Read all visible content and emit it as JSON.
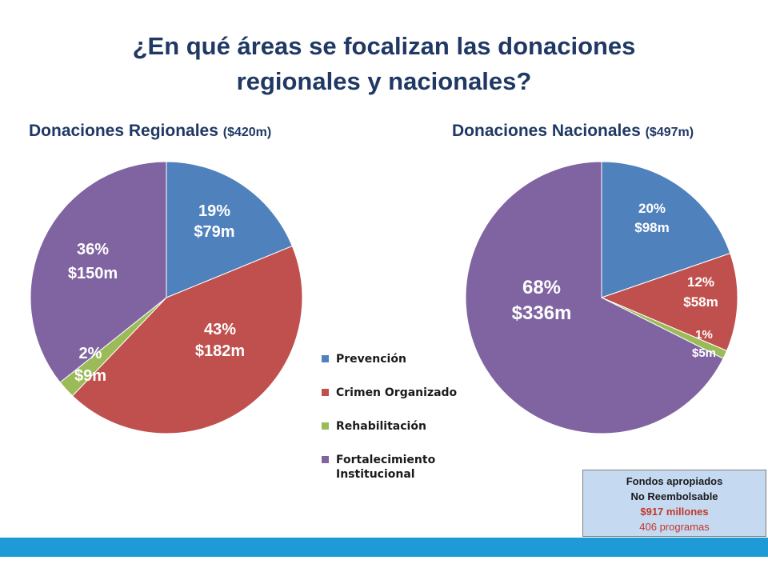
{
  "title_line1": "¿En qué áreas se focalizan las donaciones",
  "title_line2": "regionales y nacionales?",
  "colors": {
    "prevencion": "#4f81bd",
    "crimen": "#c0504d",
    "rehabilitacion": "#9bbb59",
    "fortalecimiento": "#8064a2"
  },
  "legend": [
    {
      "label": "Prevención",
      "color": "#4f81bd"
    },
    {
      "label": "Crimen Organizado",
      "color": "#c0504d"
    },
    {
      "label": "Rehabilitación",
      "color": "#9bbb59"
    },
    {
      "label_line1": "Fortalecimiento",
      "label_line2": "Institucional",
      "color": "#8064a2"
    }
  ],
  "chart_data": [
    {
      "type": "pie",
      "title": "Donaciones Regionales",
      "title_amount": "($420m)",
      "slices": [
        {
          "category": "Prevención",
          "value": 79,
          "pct_label": "19%",
          "amount_label": "$79m",
          "color": "#4f81bd"
        },
        {
          "category": "Crimen Organizado",
          "value": 182,
          "pct_label": "43%",
          "amount_label": "$182m",
          "color": "#c0504d"
        },
        {
          "category": "Rehabilitación",
          "value": 9,
          "pct_label": "2%",
          "amount_label": "$9m",
          "color": "#9bbb59"
        },
        {
          "category": "Fortalecimiento Institucional",
          "value": 150,
          "pct_label": "36%",
          "amount_label": "$150m",
          "color": "#8064a2"
        }
      ]
    },
    {
      "type": "pie",
      "title": "Donaciones Nacionales",
      "title_amount": "($497m)",
      "slices": [
        {
          "category": "Prevención",
          "value": 98,
          "pct_label": "20%",
          "amount_label": "$98m",
          "color": "#4f81bd"
        },
        {
          "category": "Crimen Organizado",
          "value": 58,
          "pct_label": "12%",
          "amount_label": "$58m",
          "color": "#c0504d"
        },
        {
          "category": "Rehabilitación",
          "value": 5,
          "pct_label": "1%",
          "amount_label": "$5m",
          "color": "#9bbb59"
        },
        {
          "category": "Fortalecimiento Institucional",
          "value": 336,
          "pct_label": "68%",
          "amount_label": "$336m",
          "color": "#8064a2"
        }
      ]
    }
  ],
  "info_box": {
    "line1": "Fondos apropiados",
    "line2": "No Reembolsable",
    "line3": "$917 millones",
    "line4": "406 programas"
  }
}
